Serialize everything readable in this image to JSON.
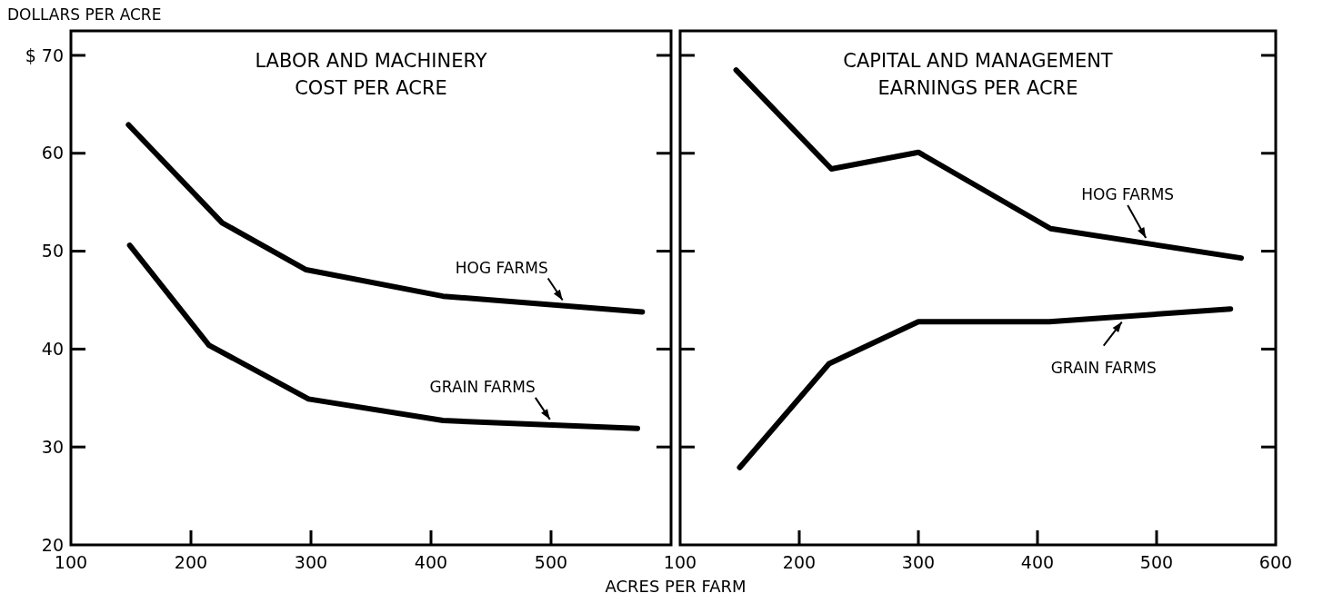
{
  "chart_data": [
    {
      "type": "line",
      "title": "LABOR AND MACHINERY\nCOST PER ACRE",
      "ylabel": "DOLLARS PER ACRE",
      "xlabel": "ACRES PER FARM",
      "xlim": [
        100,
        600
      ],
      "xticks": [
        100,
        200,
        300,
        400,
        500,
        {
          "value": 600,
          "label": null
        }
      ],
      "ylim": [
        20,
        72.5
      ],
      "yticks": [
        20,
        30,
        40,
        50,
        60,
        {
          "value": 70,
          "label": "$ 70"
        }
      ],
      "grid": false,
      "marker": "none",
      "line_style": "solid",
      "series": [
        {
          "name": "HOG FARMS",
          "color": "#000000",
          "x": [
            148,
            226,
            296,
            410,
            576
          ],
          "values": [
            62.9,
            52.9,
            48.1,
            45.4,
            43.8
          ]
        },
        {
          "name": "GRAIN FARMS",
          "color": "#000000",
          "x": [
            149,
            215,
            298,
            410,
            572
          ],
          "values": [
            50.6,
            40.4,
            34.9,
            32.7,
            31.9
          ]
        }
      ]
    },
    {
      "type": "line",
      "title": "CAPITAL AND MANAGEMENT\nEARNINGS PER ACRE",
      "xlim": [
        100,
        600
      ],
      "xticks": [
        100,
        200,
        300,
        400,
        500,
        600
      ],
      "ylim": [
        20,
        72.5
      ],
      "yticks": [
        20,
        30,
        40,
        50,
        60,
        70
      ],
      "tick_labels": "x",
      "grid": false,
      "marker": "none",
      "line_style": "solid",
      "series": [
        {
          "name": "HOG FARMS",
          "color": "#000000",
          "x": [
            147,
            227,
            300,
            411,
            571
          ],
          "values": [
            68.5,
            58.4,
            60.1,
            52.3,
            49.3
          ]
        },
        {
          "name": "GRAIN FARMS",
          "color": "#000000",
          "x": [
            150,
            225,
            300,
            410,
            562
          ],
          "values": [
            27.9,
            38.5,
            42.8,
            42.8,
            44.1
          ]
        }
      ]
    }
  ]
}
